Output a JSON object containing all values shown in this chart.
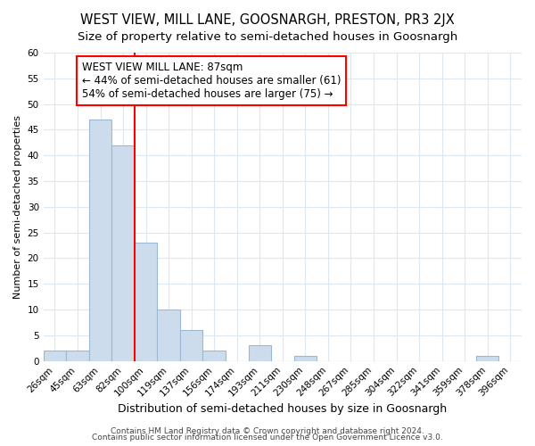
{
  "title": "WEST VIEW, MILL LANE, GOOSNARGH, PRESTON, PR3 2JX",
  "subtitle": "Size of property relative to semi-detached houses in Goosnargh",
  "xlabel": "Distribution of semi-detached houses by size in Goosnargh",
  "ylabel": "Number of semi-detached properties",
  "bar_labels": [
    "26sqm",
    "45sqm",
    "63sqm",
    "82sqm",
    "100sqm",
    "119sqm",
    "137sqm",
    "156sqm",
    "174sqm",
    "193sqm",
    "211sqm",
    "230sqm",
    "248sqm",
    "267sqm",
    "285sqm",
    "304sqm",
    "322sqm",
    "341sqm",
    "359sqm",
    "378sqm",
    "396sqm"
  ],
  "bar_values": [
    2,
    2,
    47,
    42,
    23,
    10,
    6,
    2,
    0,
    3,
    0,
    1,
    0,
    0,
    0,
    0,
    0,
    0,
    0,
    1,
    0
  ],
  "bar_color": "#ccdcec",
  "bar_edge_color": "#9ab8d4",
  "red_line_x": 3.5,
  "annotation_title": "WEST VIEW MILL LANE: 87sqm",
  "annotation_line1": "← 44% of semi-detached houses are smaller (61)",
  "annotation_line2": "54% of semi-detached houses are larger (75) →",
  "ylim": [
    0,
    60
  ],
  "yticks": [
    0,
    5,
    10,
    15,
    20,
    25,
    30,
    35,
    40,
    45,
    50,
    55,
    60
  ],
  "footer1": "Contains HM Land Registry data © Crown copyright and database right 2024.",
  "footer2": "Contains public sector information licensed under the Open Government Licence v3.0.",
  "background_color": "#ffffff",
  "grid_color": "#dce8f0",
  "title_fontsize": 10.5,
  "subtitle_fontsize": 9.5,
  "xlabel_fontsize": 9,
  "ylabel_fontsize": 8,
  "tick_fontsize": 7.5,
  "footer_fontsize": 6.5,
  "annot_fontsize": 8.5
}
